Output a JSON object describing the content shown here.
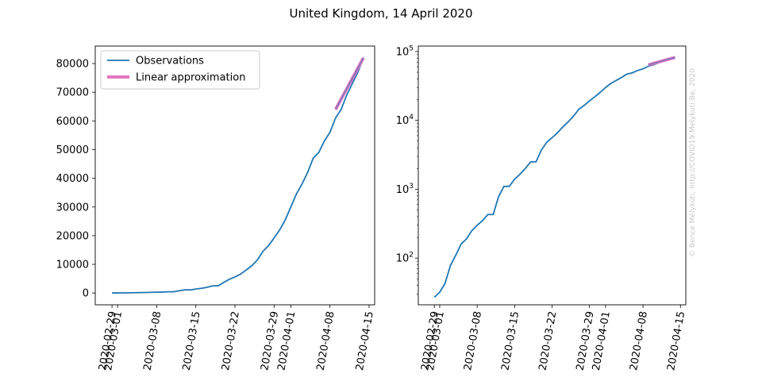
{
  "title": "United Kingdom, 14 April 2020",
  "watermark": "© Bence Mélykúti, http://COVID19.Melykuti.Be, 2020",
  "colors": {
    "observations": "#1f77b4",
    "linear_approximation": "#e377c2",
    "axis": "#000000",
    "watermark": "#c8c8c8"
  },
  "chart_data": [
    {
      "type": "line",
      "yscale": "linear",
      "xlim": [
        "2020-02-26",
        "2020-04-16"
      ],
      "ylim": [
        -4100,
        86100
      ],
      "x_ticks": [
        "2020-02-29",
        "2020-03-01",
        "2020-03-08",
        "2020-03-15",
        "2020-03-22",
        "2020-03-29",
        "2020-04-01",
        "2020-04-08",
        "2020-04-15"
      ],
      "y_ticks": [
        "0",
        "10000",
        "20000",
        "30000",
        "40000",
        "50000",
        "60000",
        "70000",
        "80000"
      ],
      "y_tick_values": [
        0,
        10000,
        20000,
        30000,
        40000,
        50000,
        60000,
        70000,
        80000
      ],
      "legend": {
        "placement": "upper-left",
        "entries": [
          "Observations",
          "Linear approximation"
        ]
      },
      "series": [
        {
          "name": "Observations",
          "x": [
            "2020-02-29",
            "2020-03-01",
            "2020-03-02",
            "2020-03-03",
            "2020-03-04",
            "2020-03-05",
            "2020-03-06",
            "2020-03-07",
            "2020-03-08",
            "2020-03-09",
            "2020-03-10",
            "2020-03-11",
            "2020-03-12",
            "2020-03-13",
            "2020-03-14",
            "2020-03-15",
            "2020-03-16",
            "2020-03-17",
            "2020-03-18",
            "2020-03-19",
            "2020-03-20",
            "2020-03-21",
            "2020-03-22",
            "2020-03-23",
            "2020-03-24",
            "2020-03-25",
            "2020-03-26",
            "2020-03-27",
            "2020-03-28",
            "2020-03-29",
            "2020-03-30",
            "2020-03-31",
            "2020-04-01",
            "2020-04-02",
            "2020-04-03",
            "2020-04-04",
            "2020-04-05",
            "2020-04-06",
            "2020-04-07",
            "2020-04-08",
            "2020-04-09",
            "2020-04-10",
            "2020-04-11",
            "2020-04-12",
            "2020-04-13",
            "2020-04-14"
          ],
          "values": [
            27,
            32,
            43,
            78,
            110,
            160,
            190,
            250,
            300,
            350,
            430,
            430,
            780,
            1100,
            1100,
            1400,
            1650,
            2000,
            2500,
            2500,
            3700,
            4800,
            5600,
            6600,
            8000,
            9500,
            11500,
            14500,
            16500,
            19200,
            22000,
            25500,
            30000,
            34500,
            38000,
            42000,
            47000,
            49000,
            53000,
            56000,
            61000,
            64000,
            69000,
            73000,
            77000,
            82000
          ]
        },
        {
          "name": "Linear approximation",
          "x": [
            "2020-04-09",
            "2020-04-14"
          ],
          "values": [
            64000,
            82000
          ]
        }
      ]
    },
    {
      "type": "line",
      "yscale": "log",
      "xlim": [
        "2020-02-26",
        "2020-04-16"
      ],
      "ylim": [
        21,
        120000
      ],
      "x_ticks": [
        "2020-02-29",
        "2020-03-01",
        "2020-03-08",
        "2020-03-15",
        "2020-03-22",
        "2020-03-29",
        "2020-04-01",
        "2020-04-08",
        "2020-04-15"
      ],
      "y_ticks": [
        {
          "base": "10",
          "exp": "2"
        },
        {
          "base": "10",
          "exp": "3"
        },
        {
          "base": "10",
          "exp": "4"
        },
        {
          "base": "10",
          "exp": "5"
        }
      ],
      "y_tick_values": [
        100,
        1000,
        10000,
        100000
      ],
      "series": [
        {
          "name": "Observations",
          "x": [
            "2020-02-29",
            "2020-03-01",
            "2020-03-02",
            "2020-03-03",
            "2020-03-04",
            "2020-03-05",
            "2020-03-06",
            "2020-03-07",
            "2020-03-08",
            "2020-03-09",
            "2020-03-10",
            "2020-03-11",
            "2020-03-12",
            "2020-03-13",
            "2020-03-14",
            "2020-03-15",
            "2020-03-16",
            "2020-03-17",
            "2020-03-18",
            "2020-03-19",
            "2020-03-20",
            "2020-03-21",
            "2020-03-22",
            "2020-03-23",
            "2020-03-24",
            "2020-03-25",
            "2020-03-26",
            "2020-03-27",
            "2020-03-28",
            "2020-03-29",
            "2020-03-30",
            "2020-03-31",
            "2020-04-01",
            "2020-04-02",
            "2020-04-03",
            "2020-04-04",
            "2020-04-05",
            "2020-04-06",
            "2020-04-07",
            "2020-04-08",
            "2020-04-09",
            "2020-04-10",
            "2020-04-11",
            "2020-04-12",
            "2020-04-13",
            "2020-04-14"
          ],
          "values": [
            27,
            32,
            43,
            78,
            110,
            160,
            190,
            250,
            300,
            350,
            430,
            430,
            780,
            1100,
            1100,
            1400,
            1650,
            2000,
            2500,
            2500,
            3700,
            4800,
            5600,
            6600,
            8000,
            9500,
            11500,
            14500,
            16500,
            19200,
            22000,
            25500,
            30000,
            34500,
            38000,
            42000,
            47000,
            49000,
            53000,
            56000,
            61000,
            64000,
            69000,
            73000,
            77000,
            82000
          ]
        },
        {
          "name": "Linear approximation",
          "x": [
            "2020-04-09",
            "2020-04-14"
          ],
          "values": [
            64000,
            82000
          ]
        }
      ]
    }
  ]
}
